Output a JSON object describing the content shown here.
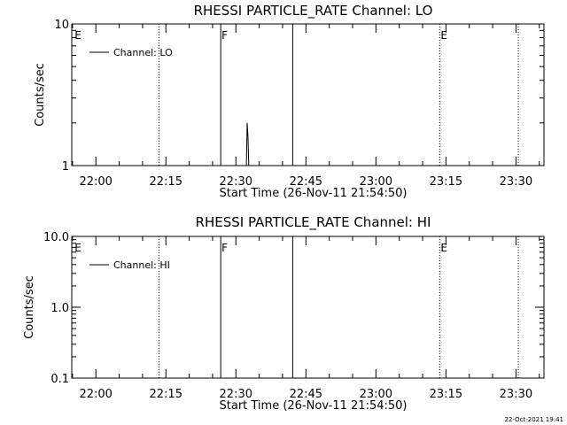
{
  "chart_data": [
    {
      "type": "line",
      "title": "RHESSI PARTICLE_RATE Channel: LO",
      "xlabel": "Start Time (26-Nov-11 21:54:50)",
      "ylabel": "Counts/sec",
      "y_scale": "log",
      "ylim": [
        1,
        10
      ],
      "xlim": [
        "21:54:50",
        "23:36:00"
      ],
      "y_ticks": [
        {
          "value": 1,
          "label": "1"
        },
        {
          "value": 10,
          "label": "10"
        }
      ],
      "x_ticks": [
        "22:00",
        "22:15",
        "22:30",
        "22:45",
        "23:00",
        "23:15",
        "23:30"
      ],
      "legend": {
        "placement": "top-left",
        "label": "Channel: LO"
      },
      "series": [
        {
          "name": "Channel: LO",
          "x": [
            "22:32:15",
            "22:32:25",
            "22:32:35",
            "22:32:45"
          ],
          "y": [
            1,
            2.0,
            1.6,
            1
          ]
        }
      ],
      "markers": [
        {
          "time": "21:55:15",
          "label": "E",
          "style": "none"
        },
        {
          "time": "22:13:30",
          "label": "",
          "style": "dotted"
        },
        {
          "time": "22:26:45",
          "label": "F",
          "style": "solid"
        },
        {
          "time": "22:42:10",
          "label": "",
          "style": "solid"
        },
        {
          "time": "23:13:40",
          "label": "E",
          "style": "dotted"
        },
        {
          "time": "23:30:30",
          "label": "",
          "style": "dotted"
        }
      ]
    },
    {
      "type": "line",
      "title": "RHESSI PARTICLE_RATE Channel: HI",
      "xlabel": "Start Time (26-Nov-11 21:54:50)",
      "ylabel": "Counts/sec",
      "y_scale": "log",
      "ylim": [
        0.1,
        10
      ],
      "xlim": [
        "21:54:50",
        "23:36:00"
      ],
      "y_ticks": [
        {
          "value": 0.1,
          "label": "0.1"
        },
        {
          "value": 1,
          "label": "1.0"
        },
        {
          "value": 10,
          "label": "10.0"
        }
      ],
      "x_ticks": [
        "22:00",
        "22:15",
        "22:30",
        "22:45",
        "23:00",
        "23:15",
        "23:30"
      ],
      "legend": {
        "placement": "top-left",
        "label": "Channel: HI"
      },
      "series": [
        {
          "name": "Channel: HI",
          "x": [],
          "y": []
        }
      ],
      "markers": [
        {
          "time": "21:55:15",
          "label": "E",
          "style": "none"
        },
        {
          "time": "22:13:30",
          "label": "",
          "style": "dotted"
        },
        {
          "time": "22:26:45",
          "label": "F",
          "style": "solid"
        },
        {
          "time": "22:42:10",
          "label": "",
          "style": "solid"
        },
        {
          "time": "23:13:40",
          "label": "E",
          "style": "dotted"
        },
        {
          "time": "23:30:30",
          "label": "",
          "style": "dotted"
        }
      ]
    }
  ],
  "footer": {
    "timestamp": "22-Oct-2021 19:41"
  }
}
